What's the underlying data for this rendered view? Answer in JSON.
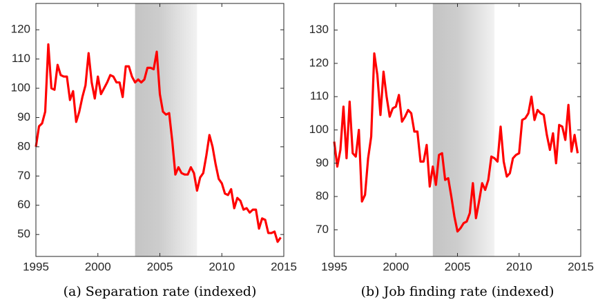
{
  "chart_data": [
    {
      "type": "line",
      "caption": "(a) Separation rate (indexed)",
      "color": "#ff0000",
      "xlim": [
        1995,
        2015
      ],
      "xticks": [
        1995,
        2000,
        2005,
        2010,
        2015
      ],
      "ylim": [
        42.5,
        129
      ],
      "yticks": [
        50,
        60,
        70,
        80,
        90,
        100,
        110,
        120
      ],
      "shaded_region": [
        2003,
        2008
      ],
      "x": [
        1995,
        1995.25,
        1995.5,
        1995.75,
        1996,
        1996.25,
        1996.5,
        1996.75,
        1997,
        1997.25,
        1997.5,
        1997.75,
        1998,
        1998.25,
        1998.5,
        1998.75,
        1999,
        1999.25,
        1999.5,
        1999.75,
        2000,
        2000.25,
        2000.5,
        2000.75,
        2001,
        2001.25,
        2001.5,
        2001.75,
        2002,
        2002.25,
        2002.5,
        2002.75,
        2003,
        2003.25,
        2003.5,
        2003.75,
        2004,
        2004.25,
        2004.5,
        2004.75,
        2005,
        2005.25,
        2005.5,
        2005.75,
        2006,
        2006.25,
        2006.5,
        2006.75,
        2007,
        2007.25,
        2007.5,
        2007.75,
        2008,
        2008.25,
        2008.5,
        2008.75,
        2009,
        2009.25,
        2009.5,
        2009.75,
        2010,
        2010.25,
        2010.5,
        2010.75,
        2011,
        2011.25,
        2011.5,
        2011.75,
        2012,
        2012.25,
        2012.5,
        2012.75,
        2013,
        2013.25,
        2013.5,
        2013.75,
        2014,
        2014.25,
        2014.5,
        2014.75
      ],
      "values": [
        80,
        87,
        88,
        92,
        115,
        100,
        99.5,
        108,
        104.5,
        104,
        104,
        96,
        99,
        88.5,
        92,
        97,
        101,
        112,
        102,
        96.5,
        104,
        98,
        100,
        102,
        104.5,
        104,
        102,
        102,
        97,
        107.5,
        107.5,
        104,
        102,
        103,
        102,
        103,
        107,
        107,
        106.5,
        112.5,
        98,
        92,
        91,
        91.5,
        82,
        70.5,
        73,
        71,
        70.5,
        70.5,
        73,
        71,
        65,
        69.5,
        71,
        77,
        84,
        80,
        74,
        69,
        67.5,
        64,
        63.5,
        65.5,
        59,
        62.5,
        61.5,
        58.5,
        59,
        57.5,
        58.5,
        58.5,
        52,
        55.5,
        55,
        50.5,
        50.5,
        51,
        47.5,
        49
      ]
    },
    {
      "type": "line",
      "caption": "(b) Job finding rate (indexed)",
      "color": "#ff0000",
      "xlim": [
        1995,
        2015
      ],
      "xticks": [
        1995,
        2000,
        2005,
        2010,
        2015
      ],
      "ylim": [
        62,
        138
      ],
      "yticks": [
        70,
        80,
        90,
        100,
        110,
        120,
        130
      ],
      "shaded_region": [
        2003,
        2008
      ],
      "x": [
        1995,
        1995.25,
        1995.5,
        1995.75,
        1996,
        1996.25,
        1996.5,
        1996.75,
        1997,
        1997.25,
        1997.5,
        1997.75,
        1998,
        1998.25,
        1998.5,
        1998.75,
        1999,
        1999.25,
        1999.5,
        1999.75,
        2000,
        2000.25,
        2000.5,
        2000.75,
        2001,
        2001.25,
        2001.5,
        2001.75,
        2002,
        2002.25,
        2002.5,
        2002.75,
        2003,
        2003.25,
        2003.5,
        2003.75,
        2004,
        2004.25,
        2004.5,
        2004.75,
        2005,
        2005.25,
        2005.5,
        2005.75,
        2006,
        2006.25,
        2006.5,
        2006.75,
        2007,
        2007.25,
        2007.5,
        2007.75,
        2008,
        2008.25,
        2008.5,
        2008.75,
        2009,
        2009.25,
        2009.5,
        2009.75,
        2010,
        2010.25,
        2010.5,
        2010.75,
        2011,
        2011.25,
        2011.5,
        2011.75,
        2012,
        2012.25,
        2012.5,
        2012.75,
        2013,
        2013.25,
        2013.5,
        2013.75,
        2014,
        2014.25,
        2014.5,
        2014.75
      ],
      "values": [
        96.5,
        89,
        94,
        107,
        91.5,
        108.5,
        93,
        92,
        100,
        78.5,
        80.5,
        91.5,
        98,
        123,
        116.5,
        104.5,
        117.5,
        110,
        104,
        106.5,
        107,
        110.5,
        102.5,
        104,
        106,
        105,
        99.5,
        99.5,
        90.5,
        90.5,
        95.5,
        83,
        89,
        83.5,
        92.5,
        93,
        85,
        85.5,
        80,
        74,
        69.5,
        70.5,
        72,
        72.5,
        75,
        84,
        73.5,
        78.5,
        84,
        82,
        85,
        92,
        91.5,
        90.5,
        101,
        90.5,
        86,
        87,
        91.5,
        92.5,
        93,
        103,
        103.5,
        105,
        110,
        103,
        106,
        105,
        104.5,
        98.5,
        94,
        99,
        90,
        101.5,
        101,
        97,
        107.5,
        93.5,
        98.5,
        93
      ]
    }
  ]
}
